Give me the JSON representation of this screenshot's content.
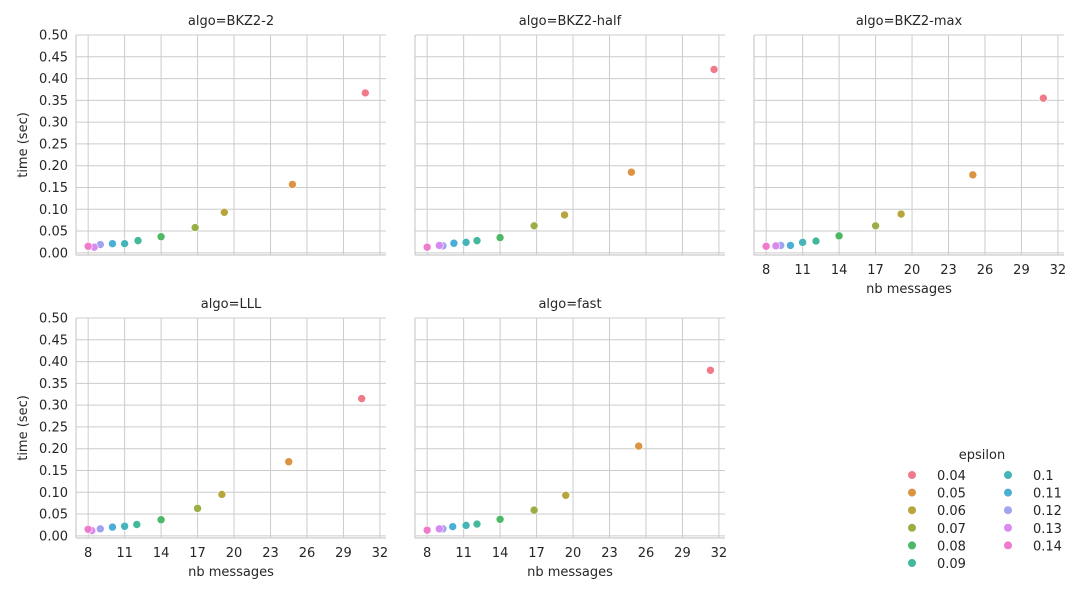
{
  "chart_data": {
    "type": "scatter",
    "x_label": "nb messages",
    "y_label": "time (sec)",
    "x_ticks": [
      8,
      11,
      14,
      17,
      20,
      23,
      26,
      29,
      32
    ],
    "y_ticks": [
      "0.00",
      "0.05",
      "0.10",
      "0.15",
      "0.20",
      "0.25",
      "0.30",
      "0.35",
      "0.40",
      "0.45",
      "0.50"
    ],
    "xlim": [
      7,
      32.5
    ],
    "ylim": [
      -0.005,
      0.5
    ],
    "grid": true,
    "legend": {
      "title": "epsilon",
      "placement": "bottom-right",
      "entries": [
        {
          "label": "0.04",
          "color": "#f07a8a"
        },
        {
          "label": "0.05",
          "color": "#dc9442"
        },
        {
          "label": "0.06",
          "color": "#b8a53c"
        },
        {
          "label": "0.07",
          "color": "#9aae46"
        },
        {
          "label": "0.08",
          "color": "#4db866"
        },
        {
          "label": "0.09",
          "color": "#44b89c"
        },
        {
          "label": "0.1",
          "color": "#46b4b8"
        },
        {
          "label": "0.11",
          "color": "#4aaed8"
        },
        {
          "label": "0.12",
          "color": "#a0a4f0"
        },
        {
          "label": "0.13",
          "color": "#d88af0"
        },
        {
          "label": "0.14",
          "color": "#f07acc"
        }
      ]
    },
    "panels": [
      {
        "title": "algo=BKZ2-2",
        "points": [
          {
            "x": 30.8,
            "y": 0.367,
            "s": 0
          },
          {
            "x": 24.8,
            "y": 0.157,
            "s": 1
          },
          {
            "x": 19.2,
            "y": 0.093,
            "s": 2
          },
          {
            "x": 16.8,
            "y": 0.058,
            "s": 3
          },
          {
            "x": 14.0,
            "y": 0.037,
            "s": 4
          },
          {
            "x": 12.1,
            "y": 0.028,
            "s": 5
          },
          {
            "x": 11.0,
            "y": 0.021,
            "s": 6
          },
          {
            "x": 10.0,
            "y": 0.021,
            "s": 7
          },
          {
            "x": 9.0,
            "y": 0.019,
            "s": 8
          },
          {
            "x": 8.5,
            "y": 0.013,
            "s": 9
          },
          {
            "x": 8.0,
            "y": 0.015,
            "s": 10
          }
        ]
      },
      {
        "title": "algo=BKZ2-half",
        "points": [
          {
            "x": 31.6,
            "y": 0.421,
            "s": 0
          },
          {
            "x": 24.8,
            "y": 0.185,
            "s": 1
          },
          {
            "x": 19.3,
            "y": 0.087,
            "s": 2
          },
          {
            "x": 16.8,
            "y": 0.062,
            "s": 3
          },
          {
            "x": 14.0,
            "y": 0.035,
            "s": 4
          },
          {
            "x": 12.1,
            "y": 0.028,
            "s": 5
          },
          {
            "x": 11.2,
            "y": 0.024,
            "s": 6
          },
          {
            "x": 10.2,
            "y": 0.022,
            "s": 7
          },
          {
            "x": 9.3,
            "y": 0.016,
            "s": 8
          },
          {
            "x": 9.0,
            "y": 0.017,
            "s": 9
          },
          {
            "x": 8.0,
            "y": 0.013,
            "s": 10
          }
        ]
      },
      {
        "title": "algo=BKZ2-max",
        "points": [
          {
            "x": 30.8,
            "y": 0.355,
            "s": 0
          },
          {
            "x": 25.0,
            "y": 0.179,
            "s": 1
          },
          {
            "x": 19.1,
            "y": 0.089,
            "s": 2
          },
          {
            "x": 17.0,
            "y": 0.062,
            "s": 3
          },
          {
            "x": 14.0,
            "y": 0.039,
            "s": 4
          },
          {
            "x": 12.1,
            "y": 0.027,
            "s": 5
          },
          {
            "x": 11.0,
            "y": 0.024,
            "s": 6
          },
          {
            "x": 10.0,
            "y": 0.017,
            "s": 7
          },
          {
            "x": 9.2,
            "y": 0.017,
            "s": 8
          },
          {
            "x": 8.8,
            "y": 0.016,
            "s": 9
          },
          {
            "x": 8.0,
            "y": 0.015,
            "s": 10
          }
        ]
      },
      {
        "title": "algo=LLL",
        "points": [
          {
            "x": 30.5,
            "y": 0.315,
            "s": 0
          },
          {
            "x": 24.5,
            "y": 0.17,
            "s": 1
          },
          {
            "x": 19.0,
            "y": 0.095,
            "s": 2
          },
          {
            "x": 17.0,
            "y": 0.063,
            "s": 3
          },
          {
            "x": 14.0,
            "y": 0.037,
            "s": 4
          },
          {
            "x": 12.0,
            "y": 0.026,
            "s": 5
          },
          {
            "x": 11.0,
            "y": 0.022,
            "s": 6
          },
          {
            "x": 10.0,
            "y": 0.02,
            "s": 7
          },
          {
            "x": 9.0,
            "y": 0.016,
            "s": 8
          },
          {
            "x": 8.3,
            "y": 0.012,
            "s": 9
          },
          {
            "x": 8.0,
            "y": 0.015,
            "s": 10
          }
        ]
      },
      {
        "title": "algo=fast",
        "points": [
          {
            "x": 31.3,
            "y": 0.38,
            "s": 0
          },
          {
            "x": 25.4,
            "y": 0.206,
            "s": 1
          },
          {
            "x": 19.4,
            "y": 0.093,
            "s": 2
          },
          {
            "x": 16.8,
            "y": 0.059,
            "s": 3
          },
          {
            "x": 14.0,
            "y": 0.038,
            "s": 4
          },
          {
            "x": 12.1,
            "y": 0.027,
            "s": 5
          },
          {
            "x": 11.2,
            "y": 0.024,
            "s": 6
          },
          {
            "x": 10.1,
            "y": 0.021,
            "s": 7
          },
          {
            "x": 9.3,
            "y": 0.016,
            "s": 8
          },
          {
            "x": 9.0,
            "y": 0.016,
            "s": 9
          },
          {
            "x": 8.0,
            "y": 0.013,
            "s": 10
          }
        ]
      }
    ]
  }
}
